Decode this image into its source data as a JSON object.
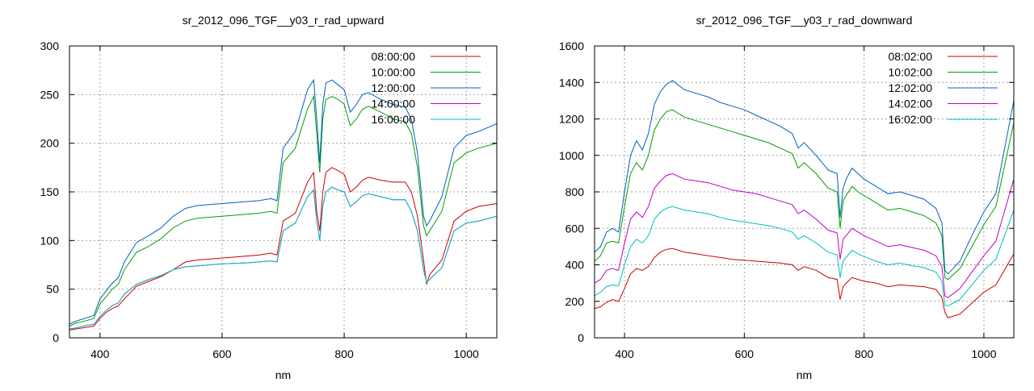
{
  "chart_data": [
    {
      "type": "line",
      "title": "sr_2012_096_TGF__y03_r_rad_upward",
      "xlabel": "nm",
      "ylabel": "",
      "xlim": [
        350,
        1050
      ],
      "ylim": [
        0,
        300
      ],
      "xticks": [
        400,
        600,
        800,
        1000
      ],
      "yticks": [
        0,
        50,
        100,
        150,
        200,
        250,
        300
      ],
      "grid": true,
      "legend_position": "top-right",
      "series": [
        {
          "name": "08:00:00",
          "color": "#cc0000",
          "x": [
            350,
            360,
            380,
            390,
            400,
            410,
            420,
            430,
            440,
            460,
            480,
            500,
            520,
            540,
            560,
            600,
            640,
            660,
            680,
            690,
            700,
            720,
            740,
            750,
            755,
            760,
            765,
            770,
            780,
            790,
            800,
            810,
            820,
            830,
            840,
            860,
            880,
            900,
            910,
            920,
            930,
            935,
            940,
            960,
            980,
            1000,
            1020,
            1050
          ],
          "y": [
            8,
            9,
            11,
            12,
            20,
            26,
            30,
            33,
            40,
            53,
            58,
            63,
            70,
            78,
            80,
            82,
            84,
            85,
            87,
            85,
            120,
            128,
            160,
            170,
            130,
            110,
            150,
            170,
            175,
            172,
            168,
            150,
            155,
            162,
            165,
            162,
            160,
            160,
            150,
            125,
            80,
            55,
            65,
            80,
            120,
            130,
            135,
            138
          ]
        },
        {
          "name": "10:00:00",
          "color": "#00a000",
          "x": [
            350,
            360,
            380,
            390,
            400,
            410,
            420,
            430,
            440,
            460,
            480,
            500,
            520,
            540,
            560,
            600,
            640,
            660,
            680,
            690,
            700,
            720,
            740,
            750,
            755,
            760,
            765,
            770,
            780,
            790,
            800,
            810,
            820,
            830,
            840,
            860,
            880,
            900,
            910,
            920,
            930,
            935,
            940,
            960,
            980,
            1000,
            1020,
            1050
          ],
          "y": [
            12,
            15,
            18,
            20,
            35,
            42,
            50,
            55,
            70,
            88,
            94,
            102,
            113,
            120,
            123,
            125,
            127,
            128,
            130,
            128,
            180,
            195,
            235,
            248,
            210,
            170,
            225,
            245,
            248,
            245,
            240,
            218,
            225,
            235,
            238,
            232,
            225,
            222,
            210,
            175,
            115,
            105,
            110,
            130,
            180,
            190,
            195,
            200
          ]
        },
        {
          "name": "12:00:00",
          "color": "#0060c0",
          "x": [
            350,
            360,
            380,
            390,
            400,
            410,
            420,
            430,
            440,
            460,
            480,
            500,
            520,
            540,
            560,
            600,
            640,
            660,
            680,
            690,
            700,
            720,
            740,
            750,
            755,
            760,
            765,
            770,
            780,
            790,
            800,
            810,
            820,
            830,
            840,
            860,
            880,
            900,
            910,
            920,
            930,
            935,
            940,
            960,
            980,
            1000,
            1020,
            1050
          ],
          "y": [
            14,
            17,
            21,
            23,
            40,
            48,
            56,
            62,
            78,
            98,
            105,
            113,
            125,
            133,
            136,
            138,
            140,
            141,
            143,
            141,
            195,
            212,
            255,
            265,
            225,
            180,
            240,
            262,
            265,
            260,
            255,
            232,
            240,
            250,
            252,
            245,
            240,
            237,
            225,
            190,
            125,
            115,
            120,
            145,
            195,
            208,
            212,
            220
          ]
        },
        {
          "name": "14:00:00",
          "color": "#c000c0",
          "x": [
            350,
            360,
            380,
            390,
            400,
            410,
            420,
            430,
            440,
            460,
            480,
            500,
            520,
            540,
            560,
            600,
            640,
            660,
            680,
            690,
            700,
            720,
            740,
            750,
            755,
            760,
            765,
            770,
            780,
            790,
            800,
            810,
            820,
            830,
            840,
            860,
            880,
            900,
            910,
            920,
            930,
            935,
            940,
            960,
            980,
            1000,
            1020,
            1050
          ],
          "y": [
            9,
            10,
            13,
            14,
            22,
            28,
            33,
            36,
            45,
            55,
            60,
            64,
            70,
            73,
            74,
            76,
            77,
            78,
            79,
            78,
            110,
            118,
            145,
            152,
            120,
            100,
            135,
            150,
            155,
            152,
            150,
            135,
            140,
            146,
            148,
            145,
            142,
            142,
            130,
            110,
            70,
            57,
            60,
            72,
            110,
            118,
            120,
            125
          ]
        },
        {
          "name": "16:00:00",
          "color": "#00c0c0",
          "x": [
            350,
            360,
            380,
            390,
            400,
            410,
            420,
            430,
            440,
            460,
            480,
            500,
            520,
            540,
            560,
            600,
            640,
            660,
            680,
            690,
            700,
            720,
            740,
            750,
            755,
            760,
            765,
            770,
            780,
            790,
            800,
            810,
            820,
            830,
            840,
            860,
            880,
            900,
            910,
            920,
            930,
            935,
            940,
            960,
            980,
            1000,
            1020,
            1050
          ],
          "y": [
            9,
            10,
            13,
            14,
            22,
            28,
            33,
            36,
            45,
            55,
            60,
            64,
            70,
            73,
            74,
            76,
            77,
            78,
            79,
            78,
            110,
            118,
            145,
            152,
            120,
            100,
            135,
            150,
            155,
            152,
            150,
            135,
            140,
            146,
            148,
            145,
            142,
            142,
            130,
            110,
            70,
            57,
            60,
            72,
            110,
            118,
            120,
            125
          ]
        }
      ]
    },
    {
      "type": "line",
      "title": "sr_2012_096_TGF__y03_r_rad_downward",
      "xlabel": "nm",
      "ylabel": "",
      "xlim": [
        350,
        1050
      ],
      "ylim": [
        0,
        1600
      ],
      "xticks": [
        400,
        600,
        800,
        1000
      ],
      "yticks": [
        0,
        200,
        400,
        600,
        800,
        1000,
        1200,
        1400,
        1600
      ],
      "grid": true,
      "legend_position": "top-right",
      "series": [
        {
          "name": "08:02:00",
          "color": "#cc0000",
          "x": [
            350,
            360,
            370,
            380,
            390,
            400,
            410,
            420,
            430,
            440,
            450,
            460,
            470,
            480,
            500,
            520,
            540,
            560,
            580,
            600,
            620,
            640,
            660,
            680,
            690,
            700,
            720,
            740,
            755,
            760,
            765,
            770,
            780,
            790,
            800,
            820,
            840,
            860,
            880,
            900,
            920,
            930,
            935,
            940,
            960,
            980,
            1000,
            1020,
            1050
          ],
          "y": [
            160,
            170,
            195,
            210,
            200,
            270,
            350,
            380,
            370,
            390,
            440,
            470,
            485,
            490,
            470,
            460,
            450,
            440,
            430,
            425,
            420,
            415,
            410,
            400,
            370,
            390,
            370,
            330,
            320,
            210,
            280,
            300,
            330,
            320,
            310,
            300,
            280,
            290,
            285,
            280,
            265,
            220,
            140,
            110,
            130,
            190,
            250,
            290,
            460
          ]
        },
        {
          "name": "10:02:00",
          "color": "#00a000",
          "x": [
            350,
            360,
            370,
            380,
            390,
            400,
            410,
            420,
            430,
            440,
            450,
            460,
            470,
            480,
            500,
            520,
            540,
            560,
            580,
            600,
            620,
            640,
            660,
            680,
            690,
            700,
            720,
            740,
            755,
            760,
            765,
            770,
            780,
            790,
            800,
            820,
            840,
            860,
            880,
            900,
            920,
            930,
            935,
            940,
            960,
            980,
            1000,
            1020,
            1050
          ],
          "y": [
            420,
            450,
            520,
            530,
            520,
            720,
            900,
            960,
            920,
            1000,
            1140,
            1200,
            1240,
            1250,
            1210,
            1190,
            1170,
            1150,
            1130,
            1110,
            1090,
            1070,
            1040,
            1010,
            930,
            960,
            900,
            820,
            800,
            600,
            750,
            780,
            830,
            800,
            780,
            740,
            700,
            710,
            690,
            670,
            630,
            560,
            330,
            320,
            380,
            500,
            620,
            720,
            1180
          ]
        },
        {
          "name": "12:02:00",
          "color": "#0060c0",
          "x": [
            350,
            360,
            370,
            380,
            390,
            400,
            410,
            420,
            430,
            440,
            450,
            460,
            470,
            480,
            500,
            520,
            540,
            560,
            580,
            600,
            620,
            640,
            660,
            680,
            690,
            700,
            720,
            740,
            755,
            760,
            765,
            770,
            780,
            790,
            800,
            820,
            840,
            860,
            880,
            900,
            920,
            930,
            935,
            940,
            960,
            980,
            1000,
            1020,
            1050
          ],
          "y": [
            470,
            500,
            580,
            600,
            580,
            800,
            1000,
            1080,
            1030,
            1120,
            1280,
            1350,
            1390,
            1410,
            1360,
            1340,
            1320,
            1290,
            1270,
            1250,
            1220,
            1190,
            1160,
            1120,
            1040,
            1070,
            1000,
            920,
            900,
            660,
            820,
            870,
            930,
            900,
            870,
            830,
            790,
            800,
            780,
            760,
            710,
            630,
            370,
            350,
            420,
            560,
            690,
            790,
            1300
          ]
        },
        {
          "name": "14:02:00",
          "color": "#c000c0",
          "x": [
            350,
            360,
            370,
            380,
            390,
            400,
            410,
            420,
            430,
            440,
            450,
            460,
            470,
            480,
            500,
            520,
            540,
            560,
            580,
            600,
            620,
            640,
            660,
            680,
            690,
            700,
            720,
            740,
            755,
            760,
            765,
            770,
            780,
            790,
            800,
            820,
            840,
            860,
            880,
            900,
            920,
            930,
            935,
            940,
            960,
            980,
            1000,
            1020,
            1050
          ],
          "y": [
            300,
            320,
            370,
            380,
            370,
            520,
            650,
            690,
            660,
            720,
            820,
            860,
            890,
            900,
            870,
            860,
            850,
            830,
            810,
            800,
            790,
            770,
            750,
            730,
            680,
            700,
            650,
            590,
            575,
            430,
            540,
            560,
            600,
            580,
            560,
            530,
            500,
            510,
            495,
            480,
            450,
            390,
            230,
            220,
            270,
            360,
            450,
            530,
            870
          ]
        },
        {
          "name": "16:02:00",
          "color": "#00c0c0",
          "x": [
            350,
            360,
            370,
            380,
            390,
            400,
            410,
            420,
            430,
            440,
            450,
            460,
            470,
            480,
            500,
            520,
            540,
            560,
            580,
            600,
            620,
            640,
            660,
            680,
            690,
            700,
            720,
            740,
            755,
            760,
            765,
            770,
            780,
            790,
            800,
            820,
            840,
            860,
            880,
            900,
            920,
            930,
            935,
            940,
            960,
            980,
            1000,
            1020,
            1050
          ],
          "y": [
            230,
            250,
            280,
            290,
            285,
            400,
            500,
            540,
            520,
            560,
            650,
            690,
            710,
            720,
            700,
            690,
            680,
            660,
            645,
            635,
            625,
            615,
            600,
            580,
            540,
            560,
            520,
            470,
            455,
            330,
            420,
            440,
            480,
            460,
            445,
            420,
            400,
            410,
            395,
            385,
            360,
            310,
            180,
            175,
            210,
            290,
            370,
            430,
            700
          ]
        }
      ]
    }
  ]
}
